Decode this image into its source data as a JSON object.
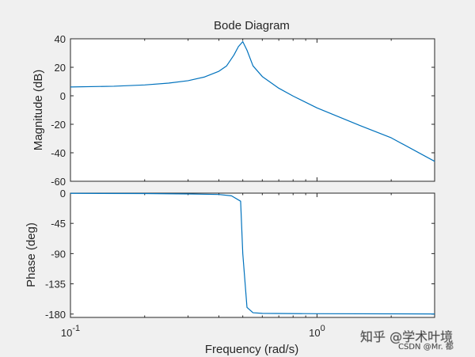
{
  "chart_data": [
    {
      "type": "line",
      "panel": "magnitude",
      "title": "Bode Diagram",
      "ylabel": "Magnitude (dB)",
      "xscale": "log",
      "xlim": [
        0.1,
        3
      ],
      "ylim": [
        -60,
        40
      ],
      "yticks": [
        "40",
        "20",
        "0",
        "-20",
        "-40",
        "-60"
      ],
      "ytick_values": [
        40,
        20,
        0,
        -20,
        -40,
        -60
      ],
      "grid": false,
      "series": [
        {
          "color": "#0072bd",
          "x": [
            0.1,
            0.15,
            0.2,
            0.25,
            0.3,
            0.35,
            0.4,
            0.43,
            0.46,
            0.48,
            0.5,
            0.52,
            0.55,
            0.6,
            0.7,
            0.8,
            1.0,
            1.5,
            2.0,
            3.0
          ],
          "y": [
            6.2,
            6.7,
            7.6,
            8.9,
            10.6,
            13.2,
            17.2,
            21.0,
            28.5,
            34.5,
            38.0,
            32.0,
            21.0,
            13.5,
            5.3,
            -0.2,
            -8.5,
            -21.0,
            -29.5,
            -46.0
          ]
        }
      ]
    },
    {
      "type": "line",
      "panel": "phase",
      "xlabel": "Frequency  (rad/s)",
      "ylabel": "Phase (deg)",
      "xscale": "log",
      "xlim": [
        0.1,
        3
      ],
      "ylim": [
        -185,
        0
      ],
      "yticks": [
        "0",
        "-45",
        "-90",
        "-135",
        "-180"
      ],
      "ytick_values": [
        0,
        -45,
        -90,
        -135,
        -180
      ],
      "xticks": [
        {
          "base": "10",
          "exp": "-1",
          "value": 0.1
        },
        {
          "base": "10",
          "exp": "0",
          "value": 1
        }
      ],
      "grid": false,
      "series": [
        {
          "color": "#0072bd",
          "x": [
            0.1,
            0.2,
            0.3,
            0.4,
            0.45,
            0.49,
            0.5,
            0.52,
            0.55,
            0.6,
            1.0,
            3.0
          ],
          "y": [
            -0.3,
            -0.6,
            -1.2,
            -2.0,
            -4.0,
            -12.0,
            -90.0,
            -170.0,
            -178.0,
            -179.0,
            -179.5,
            -179.8
          ]
        }
      ]
    }
  ],
  "watermark": {
    "main": "知乎 @学术叶境",
    "sub": "CSDN @Mr. 都"
  }
}
